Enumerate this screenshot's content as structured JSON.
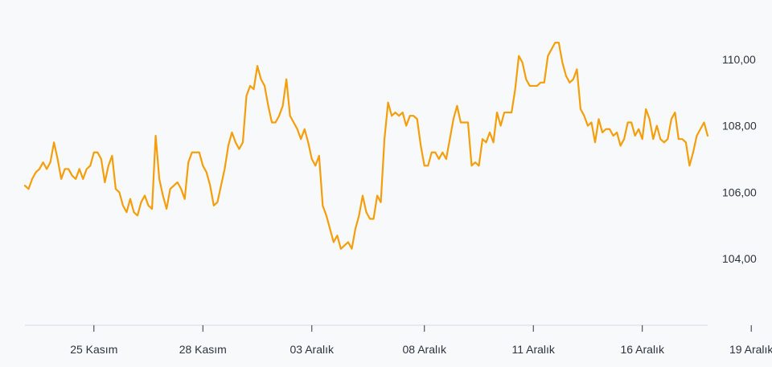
{
  "chart_data": {
    "type": "line",
    "title": "",
    "xlabel": "",
    "ylabel": "",
    "ylim": [
      102.0,
      111.3
    ],
    "grid": false,
    "line_color": "#f59e0b",
    "background": "#f8f9fa",
    "y_ticks": [
      {
        "value": 104,
        "label": "104,00"
      },
      {
        "value": 106,
        "label": "106,00"
      },
      {
        "value": 108,
        "label": "108,00"
      },
      {
        "value": 110,
        "label": "110,00"
      }
    ],
    "x_ticks": [
      {
        "index": 19,
        "label": "25 Kasım"
      },
      {
        "index": 49,
        "label": "28 Kasım"
      },
      {
        "index": 79,
        "label": "03 Aralık"
      },
      {
        "index": 110,
        "label": "08 Aralık"
      },
      {
        "index": 140,
        "label": "11 Aralık"
      },
      {
        "index": 170,
        "label": "16 Aralık"
      },
      {
        "index": 200,
        "label": "19 Aralık"
      }
    ],
    "series": [
      {
        "values": [
          106.2,
          106.1,
          106.4,
          106.6,
          106.7,
          106.9,
          106.7,
          106.9,
          107.5,
          107.0,
          106.4,
          106.7,
          106.7,
          106.5,
          106.4,
          106.7,
          106.4,
          106.7,
          106.8,
          107.2,
          107.2,
          107.0,
          106.3,
          106.8,
          107.1,
          106.1,
          106.0,
          105.6,
          105.4,
          105.8,
          105.4,
          105.3,
          105.7,
          105.9,
          105.6,
          105.5,
          107.7,
          106.4,
          105.9,
          105.5,
          106.1,
          106.2,
          106.3,
          106.1,
          105.8,
          106.9,
          107.2,
          107.2,
          107.2,
          106.8,
          106.6,
          106.2,
          105.6,
          105.7,
          106.2,
          106.7,
          107.4,
          107.8,
          107.5,
          107.3,
          107.5,
          108.9,
          109.2,
          109.1,
          109.8,
          109.4,
          109.2,
          108.6,
          108.1,
          108.1,
          108.3,
          108.6,
          109.4,
          108.3,
          108.1,
          107.9,
          107.6,
          107.9,
          107.5,
          107.0,
          106.8,
          107.1,
          105.6,
          105.3,
          104.9,
          104.5,
          104.7,
          104.3,
          104.4,
          104.5,
          104.3,
          104.9,
          105.3,
          105.9,
          105.4,
          105.2,
          105.2,
          105.9,
          105.7,
          107.6,
          108.7,
          108.3,
          108.4,
          108.3,
          108.4,
          108.0,
          108.3,
          108.3,
          108.2,
          107.4,
          106.8,
          106.8,
          107.2,
          107.2,
          107.0,
          107.2,
          107.0,
          107.6,
          108.2,
          108.6,
          108.1,
          108.1,
          108.1,
          106.8,
          106.9,
          106.8,
          107.6,
          107.5,
          107.8,
          107.5,
          108.4,
          108.0,
          108.4,
          108.4,
          108.4,
          109.1,
          110.1,
          109.9,
          109.4,
          109.2,
          109.2,
          109.2,
          109.3,
          109.3,
          110.1,
          110.3,
          110.5,
          110.5,
          109.9,
          109.5,
          109.3,
          109.4,
          109.7,
          108.5,
          108.3,
          108.0,
          108.1,
          107.5,
          108.2,
          107.8,
          107.9,
          107.9,
          107.7,
          107.8,
          107.4,
          107.6,
          108.1,
          108.1,
          107.7,
          107.9,
          107.6,
          108.5,
          108.2,
          107.6,
          108.0,
          107.6,
          107.5,
          107.6,
          108.2,
          108.4,
          107.6,
          107.6,
          107.5,
          106.8,
          107.2,
          107.7,
          107.9,
          108.1,
          107.7
        ]
      }
    ]
  }
}
